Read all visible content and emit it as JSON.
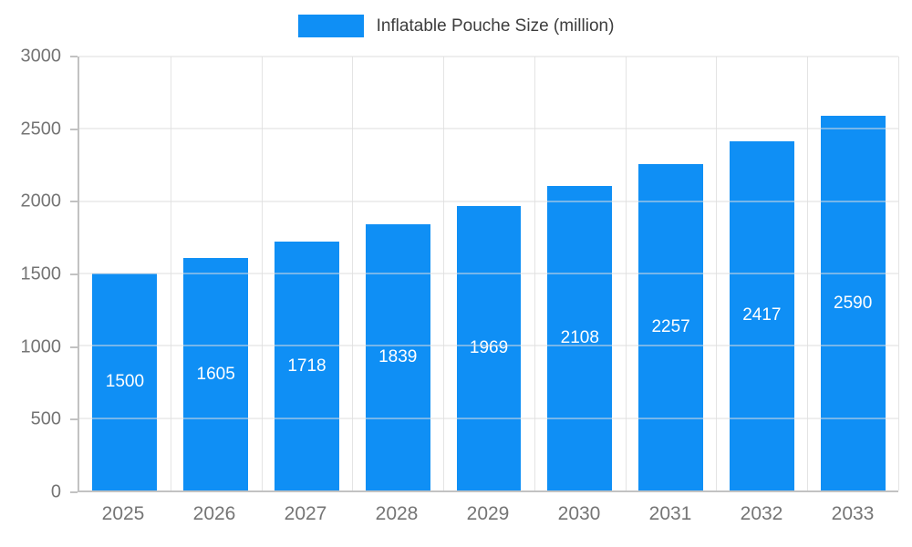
{
  "chart_data": {
    "type": "bar",
    "title": "Inflatable Pouche Size (million)",
    "categories": [
      "2025",
      "2026",
      "2027",
      "2028",
      "2029",
      "2030",
      "2031",
      "2032",
      "2033"
    ],
    "values": [
      1500,
      1605,
      1718,
      1839,
      1969,
      2108,
      2257,
      2417,
      2590
    ],
    "xlabel": "",
    "ylabel": "",
    "ylim": [
      0,
      3000
    ],
    "ytick_step": 500,
    "ytick_labels": [
      "0",
      "500",
      "1000",
      "1500",
      "2000",
      "2500",
      "3000"
    ],
    "grid": true,
    "legend_position": "top",
    "bar_color": "#0f8ff5",
    "bar_value_label_color": "#ffffff",
    "axis_text_color": "#757575",
    "legend_text_color": "#3d3d3d"
  }
}
